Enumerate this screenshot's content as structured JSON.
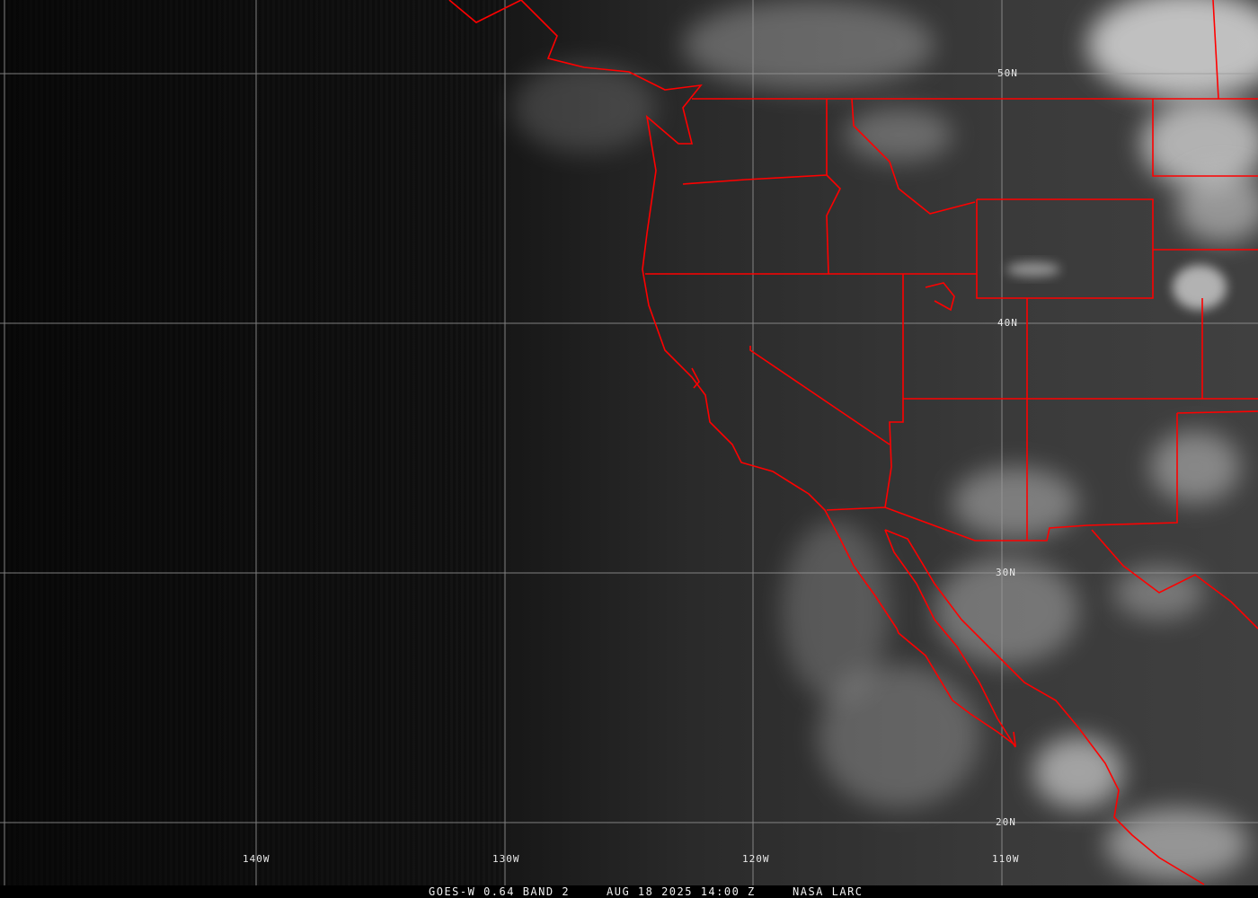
{
  "satellite_image": {
    "caption": {
      "product": "GOES-W 0.64 BAND 2",
      "datetime": "AUG 18 2025 14:00 Z",
      "source": "NASA LARC"
    },
    "latitude_labels": [
      "50N",
      "40N",
      "30N",
      "20N"
    ],
    "longitude_labels": [
      "140W",
      "130W",
      "120W",
      "110W"
    ],
    "colors": {
      "borders": "#ff0000",
      "grid": "#9a9a9a",
      "text": "#ffffff"
    }
  }
}
